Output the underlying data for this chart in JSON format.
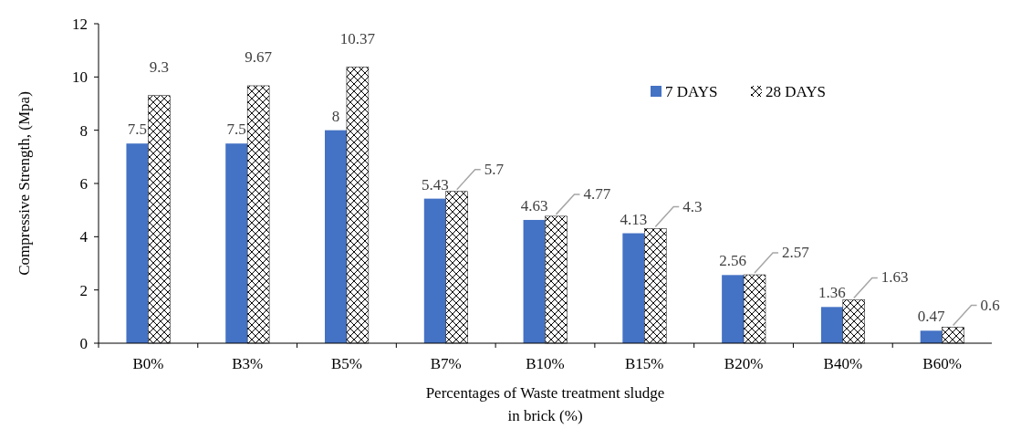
{
  "chart_data": {
    "type": "bar",
    "xlabel": "Percentages of Waste treatment sludge\nin brick (%)",
    "ylabel": "Compressive Strength, (Mpa)",
    "categories": [
      "B0%",
      "B3%",
      "B5%",
      "B7%",
      "B10%",
      "B15%",
      "B20%",
      "B40%",
      "B60%"
    ],
    "series": [
      {
        "name": "7 DAYS",
        "color": "#4472c4",
        "values": [
          7.5,
          7.5,
          8,
          5.43,
          4.63,
          4.13,
          2.56,
          1.36,
          0.47
        ]
      },
      {
        "name": "28 DAYS",
        "color": "#000000",
        "values": [
          9.3,
          9.67,
          10.37,
          5.7,
          4.77,
          4.3,
          2.57,
          1.63,
          0.6
        ]
      }
    ],
    "ylim": [
      0,
      12
    ],
    "yticks": [
      0,
      2,
      4,
      6,
      8,
      10,
      12
    ],
    "grid": false,
    "legend": "top right",
    "data_labels": true
  }
}
